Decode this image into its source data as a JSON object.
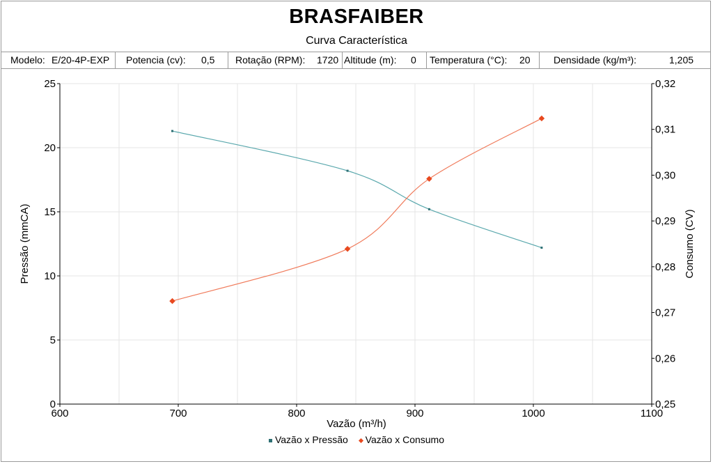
{
  "header": {
    "title": "BRASFAIBER",
    "subtitle": "Curva Característica"
  },
  "params": {
    "modelo_label": "Modelo:",
    "modelo_value": "E/20-4P-EXP",
    "potencia_label": "Potencia (cv):",
    "potencia_value": "0,5",
    "rotacao_label": "Rotação (RPM):",
    "rotacao_value": "1720",
    "altitude_label": "Altitude (m):",
    "altitude_value": "0",
    "temperatura_label": "Temperatura (°C):",
    "temperatura_value": "20",
    "densidade_label": "Densidade (kg/m³):",
    "densidade_value": "1,205"
  },
  "colors": {
    "pressao": "#5aa8ad",
    "consumo": "#f07a5a",
    "grid": "#e4e4e4"
  },
  "chart_data": {
    "type": "line",
    "xlabel": "Vazão (m³/h)",
    "ylabel": "Pressão (mmCA)",
    "y2label": "Consumo (CV)",
    "xlim": [
      600,
      1100
    ],
    "ylim": [
      0,
      25
    ],
    "y2lim": [
      0.25,
      0.32
    ],
    "x_ticks": [
      "600",
      "700",
      "800",
      "900",
      "1000",
      "1100"
    ],
    "y_ticks": [
      "0",
      "5",
      "10",
      "15",
      "20",
      "25"
    ],
    "y2_ticks": [
      "0,25",
      "0,26",
      "0,27",
      "0,28",
      "0,29",
      "0,30",
      "0,31",
      "0,32"
    ],
    "grid": true,
    "legend_position": "bottom",
    "series": [
      {
        "name": "Vazão x Pressão",
        "axis": "left",
        "x": [
          695,
          843,
          912,
          1007
        ],
        "y": [
          21.3,
          18.2,
          15.2,
          12.2
        ]
      },
      {
        "name": "Vazão x Consumo",
        "axis": "right",
        "x": [
          695,
          843,
          912,
          1007
        ],
        "y": [
          0.2725,
          0.2839,
          0.2992,
          0.3124
        ]
      }
    ]
  }
}
